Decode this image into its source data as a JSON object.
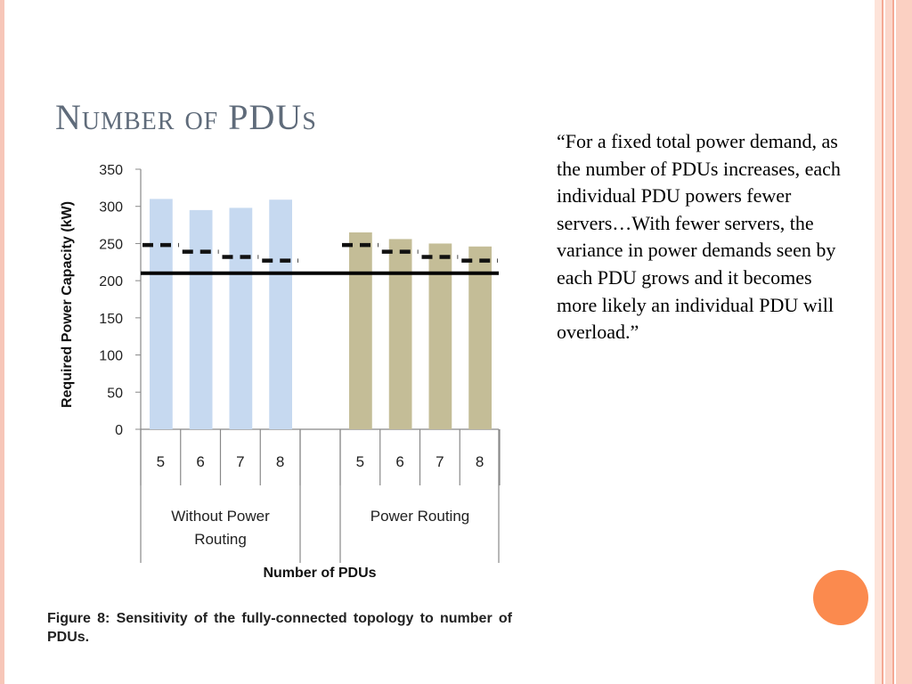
{
  "slide": {
    "title": "Number of PDUs",
    "quote": "“For a fixed total power demand, as the number of PDUs increases, each individual PDU powers fewer servers…With fewer servers, the variance in power demands seen by each PDU grows and it becomes more likely an individual PDU will overload.”",
    "caption": "Figure 8: Sensitivity of the fully-connected topology to number of PDUs."
  },
  "colors": {
    "without_power_routing": "#c6d9f0",
    "power_routing": "#c4bd97",
    "accent": "#fb8a4e",
    "title": "#5f6b7a"
  },
  "chart_data": {
    "type": "bar",
    "title": "",
    "xlabel": "Number of PDUs",
    "ylabel": "Required Power Capacity (kW)",
    "ylim": [
      0,
      350
    ],
    "yticks": [
      "0",
      "50",
      "100",
      "150",
      "200",
      "250",
      "300",
      "350"
    ],
    "grid": false,
    "groups": [
      {
        "name": "Without Power Routing",
        "categories": [
          "5",
          "6",
          "7",
          "8"
        ],
        "values": [
          310,
          295,
          298,
          309
        ],
        "dashed_values": [
          248,
          239,
          232,
          227
        ]
      },
      {
        "name": "Power Routing",
        "categories": [
          "5",
          "6",
          "7",
          "8"
        ],
        "values": [
          265,
          256,
          250,
          246
        ],
        "dashed_values": [
          248,
          239,
          232,
          227
        ]
      }
    ],
    "reference_line": 210
  }
}
